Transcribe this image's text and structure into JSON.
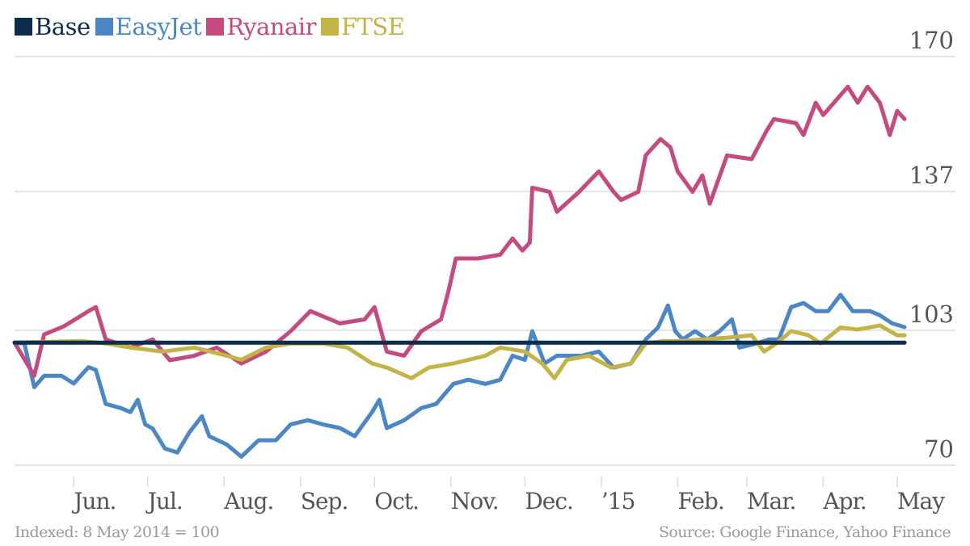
{
  "chart_data": {
    "type": "line",
    "title": "",
    "xlabel": "",
    "ylabel": "",
    "x_units": "days since 8 May 2014",
    "xlim": [
      0,
      361
    ],
    "ylim": [
      70,
      170
    ],
    "y_ticks": [
      70,
      103,
      137,
      170
    ],
    "y_tick_labels": [
      "70",
      "103",
      "137",
      "170"
    ],
    "x_ticks": [
      24,
      54,
      85,
      116,
      146,
      177,
      207,
      238,
      269,
      297,
      328,
      358
    ],
    "x_tick_labels": [
      "Jun.",
      "Jul.",
      "Aug.",
      "Sep.",
      "Oct.",
      "Nov.",
      "Dec.",
      "’15",
      "Feb.",
      "Mar.",
      "Apr.",
      "May"
    ],
    "grid": true,
    "legend_position": "top-left",
    "series": [
      {
        "name": "Base",
        "color": "#0d2d4f",
        "x": [
          0,
          361
        ],
        "values": [
          100,
          100
        ]
      },
      {
        "name": "EasyJet",
        "color": "#4a87c4",
        "x": [
          0,
          4,
          8,
          12,
          19,
          24,
          30,
          33,
          37,
          43,
          47,
          50,
          53,
          56,
          61,
          66,
          71,
          76,
          79,
          86,
          92,
          99,
          106,
          112,
          119,
          125,
          132,
          138,
          145,
          148,
          151,
          158,
          165,
          171,
          178,
          184,
          191,
          197,
          202,
          207,
          210,
          215,
          220,
          230,
          237,
          243,
          250,
          256,
          261,
          265,
          268,
          271,
          276,
          281,
          286,
          291,
          294,
          301,
          306,
          310,
          315,
          320,
          325,
          330,
          335,
          340,
          347,
          351,
          356,
          361
        ],
        "values": [
          100,
          99.8,
          89.1,
          91.9,
          91.9,
          90,
          94,
          93.3,
          85,
          84,
          83,
          86,
          80,
          79,
          74.1,
          73.1,
          78.1,
          82,
          77.1,
          75.1,
          72.1,
          76.1,
          76.1,
          80,
          81,
          80,
          79.1,
          77.1,
          83,
          86,
          79.1,
          81,
          84,
          85,
          89.9,
          90.9,
          89.9,
          90.9,
          96.8,
          95.8,
          102.8,
          94.9,
          96.8,
          96.8,
          97.8,
          93.9,
          94.9,
          100.8,
          103.7,
          109.1,
          102.8,
          100.8,
          102.8,
          100.8,
          102.8,
          105.7,
          98.8,
          99.8,
          100.8,
          100.8,
          108.7,
          109.7,
          107.7,
          107.7,
          111.7,
          107.7,
          107.7,
          106.7,
          104.7,
          103.8
        ]
      },
      {
        "name": "Ryanair",
        "color": "#c44a80",
        "x": [
          0,
          8,
          12,
          20,
          30,
          33,
          37,
          47,
          56,
          63,
          73,
          82,
          92,
          102,
          112,
          120,
          132,
          142,
          146,
          151,
          158,
          165,
          173,
          176,
          179,
          188,
          197,
          202,
          206,
          209,
          210,
          217,
          220,
          229,
          237,
          243,
          246,
          253,
          256,
          262,
          266,
          269,
          275,
          279,
          282,
          289,
          299,
          305,
          308,
          317,
          320,
          325,
          328,
          338,
          342,
          346,
          351,
          355,
          358,
          361
        ],
        "values": [
          100,
          91.9,
          102,
          104,
          107.7,
          108.7,
          100.8,
          98.8,
          100.8,
          95.7,
          96.8,
          98.8,
          94.9,
          97.8,
          102.8,
          107.7,
          104.7,
          105.7,
          108.7,
          97.8,
          96.8,
          102.8,
          105.7,
          112.6,
          120.6,
          120.6,
          121.5,
          125.5,
          122.5,
          124.5,
          137.9,
          136.9,
          132,
          136.9,
          141.9,
          136.9,
          134.9,
          136.9,
          145.8,
          149.8,
          147.8,
          141.9,
          136.9,
          140.9,
          134,
          145.8,
          144.9,
          151.8,
          154.7,
          153.7,
          150.8,
          158.7,
          155.7,
          162.6,
          158.7,
          162.6,
          158.7,
          150.8,
          156.7,
          154.7
        ]
      },
      {
        "name": "FTSE",
        "color": "#c4b447",
        "x": [
          0,
          27,
          37,
          47,
          60,
          73,
          86,
          92,
          102,
          112,
          125,
          135,
          145,
          151,
          161,
          168,
          178,
          191,
          197,
          207,
          214,
          219,
          224,
          233,
          242,
          250,
          256,
          263,
          270,
          279,
          289,
          299,
          304,
          309,
          315,
          322,
          327,
          335,
          342,
          351,
          358,
          361
        ],
        "values": [
          100,
          100.4,
          99.8,
          98.8,
          97.8,
          98.8,
          96.8,
          95.8,
          98.8,
          99.8,
          99.8,
          98.8,
          94.9,
          93.9,
          91.3,
          93.9,
          94.9,
          96.8,
          98.8,
          97.8,
          94.9,
          91.3,
          95.8,
          96.8,
          93.9,
          94.9,
          99.8,
          100.4,
          100.4,
          100.8,
          101.2,
          101.8,
          97.8,
          99.8,
          102.8,
          101.8,
          99.8,
          103.7,
          103.2,
          104.2,
          101.8,
          101.8
        ]
      }
    ]
  },
  "footer": {
    "note": "Indexed: 8 May 2014 = 100",
    "source": "Source: Google Finance, Yahoo Finance"
  }
}
